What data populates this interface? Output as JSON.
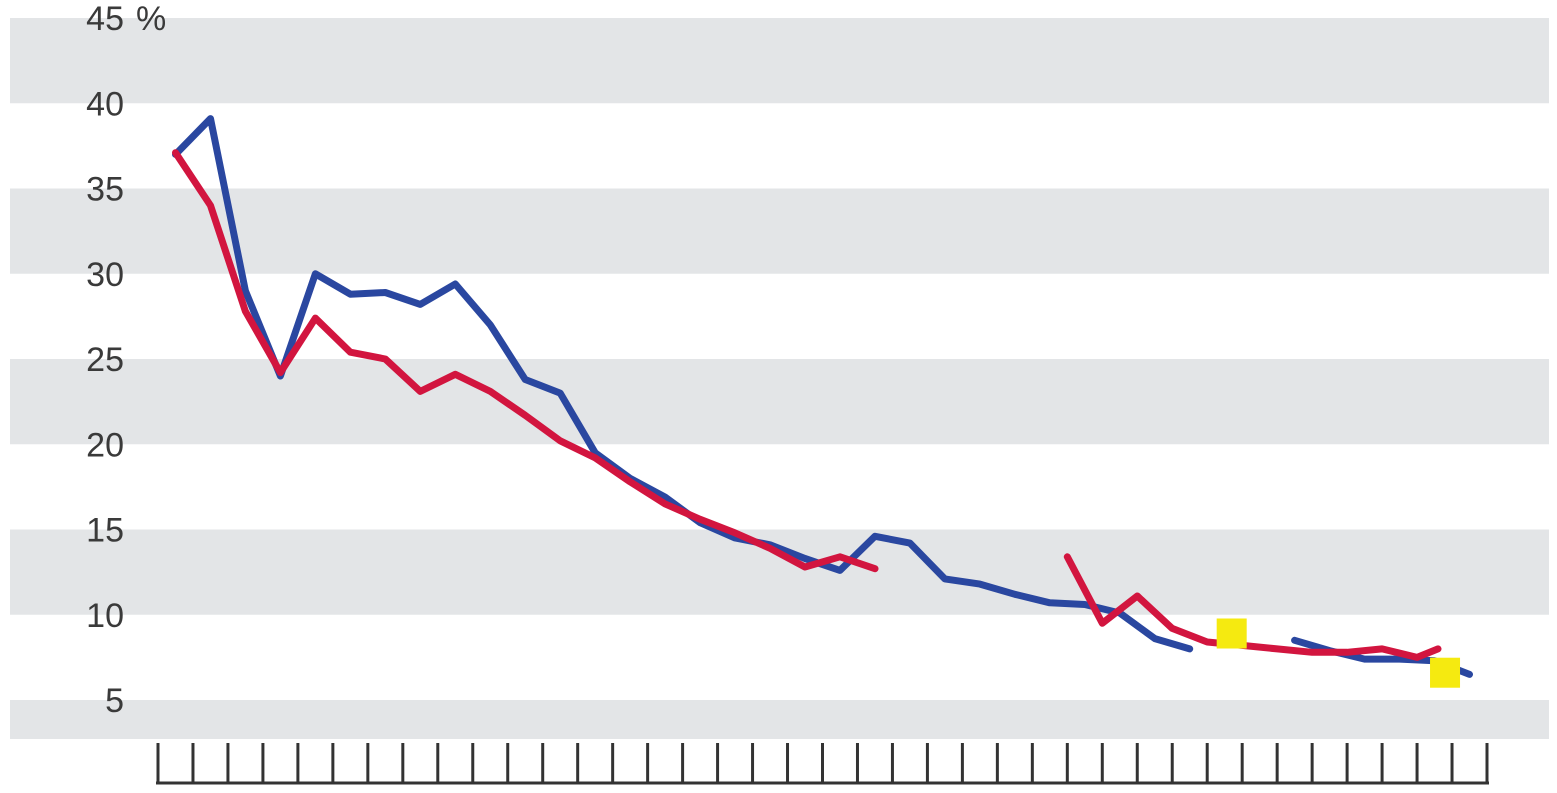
{
  "chart_data": {
    "type": "line",
    "title": "",
    "xlabel": "",
    "ylabel": "",
    "y_unit_label": "%",
    "ylim": [
      0,
      45
    ],
    "yticks": [
      5,
      10,
      15,
      20,
      25,
      30,
      35,
      40,
      45
    ],
    "ytick_labels": [
      "5",
      "10",
      "15",
      "20",
      "25",
      "30",
      "35",
      "40",
      "45"
    ],
    "x_tick_count": 39,
    "xlim": [
      0,
      38
    ],
    "grid": "alternating horizontal bands",
    "legend": "none",
    "colors": {
      "band": "#e3e5e7",
      "axis": "#333333",
      "series_blue": "#2a47a0",
      "series_red": "#d2153f",
      "marker": "#f5ea10"
    },
    "series": [
      {
        "color": "#2a47a0",
        "segments": [
          [
            [
              0.5,
              37
            ],
            [
              1.5,
              39.1
            ],
            [
              2.5,
              29
            ],
            [
              3.5,
              24
            ],
            [
              4.5,
              30
            ],
            [
              5.5,
              28.8
            ],
            [
              6.5,
              28.9
            ],
            [
              7.5,
              28.2
            ],
            [
              8.5,
              29.4
            ],
            [
              9.5,
              27
            ],
            [
              10.5,
              23.8
            ],
            [
              11.5,
              23
            ],
            [
              12.5,
              19.5
            ],
            [
              13.5,
              18
            ],
            [
              14.5,
              16.9
            ],
            [
              15.5,
              15.4
            ],
            [
              16.5,
              14.5
            ],
            [
              17.5,
              14.1
            ],
            [
              18.5,
              13.3
            ],
            [
              19.5,
              12.6
            ],
            [
              20.5,
              14.6
            ],
            [
              21.5,
              14.2
            ],
            [
              22.5,
              12.1
            ],
            [
              23.5,
              11.8
            ],
            [
              24.5,
              11.2
            ],
            [
              25.5,
              10.7
            ],
            [
              26.5,
              10.6
            ],
            [
              27.5,
              10.1
            ],
            [
              28.5,
              8.6
            ],
            [
              29.5,
              8.0
            ]
          ],
          [
            [
              32.5,
              8.5
            ],
            [
              33.5,
              7.9
            ],
            [
              34.5,
              7.4
            ],
            [
              35.5,
              7.4
            ],
            [
              36.5,
              7.3
            ],
            [
              37.5,
              6.5
            ]
          ]
        ]
      },
      {
        "color": "#d2153f",
        "segments": [
          [
            [
              0.5,
              37.1
            ],
            [
              1.5,
              34
            ],
            [
              2.5,
              27.8
            ],
            [
              3.5,
              24.2
            ],
            [
              4.5,
              27.4
            ],
            [
              5.5,
              25.4
            ],
            [
              6.5,
              25
            ],
            [
              7.5,
              23.1
            ],
            [
              8.5,
              24.1
            ],
            [
              9.5,
              23.1
            ],
            [
              10.5,
              21.7
            ],
            [
              11.5,
              20.2
            ],
            [
              12.5,
              19.2
            ],
            [
              13.5,
              17.8
            ],
            [
              14.5,
              16.5
            ],
            [
              15.5,
              15.6
            ],
            [
              16.5,
              14.8
            ],
            [
              17.5,
              13.9
            ],
            [
              18.5,
              12.8
            ],
            [
              19.5,
              13.4
            ],
            [
              20.5,
              12.7
            ]
          ],
          [
            [
              26.0,
              13.4
            ],
            [
              27.0,
              9.5
            ],
            [
              28.0,
              11.1
            ],
            [
              29.0,
              9.2
            ],
            [
              30.0,
              8.4
            ],
            [
              31.0,
              8.2
            ],
            [
              32.0,
              8.0
            ],
            [
              33.0,
              7.8
            ],
            [
              34.0,
              7.8
            ],
            [
              35.0,
              8.0
            ],
            [
              36.0,
              7.5
            ],
            [
              36.6,
              8.0
            ]
          ]
        ]
      }
    ],
    "markers": [
      {
        "x": 30.7,
        "y": 8.9
      },
      {
        "x": 36.8,
        "y": 6.6
      }
    ]
  }
}
